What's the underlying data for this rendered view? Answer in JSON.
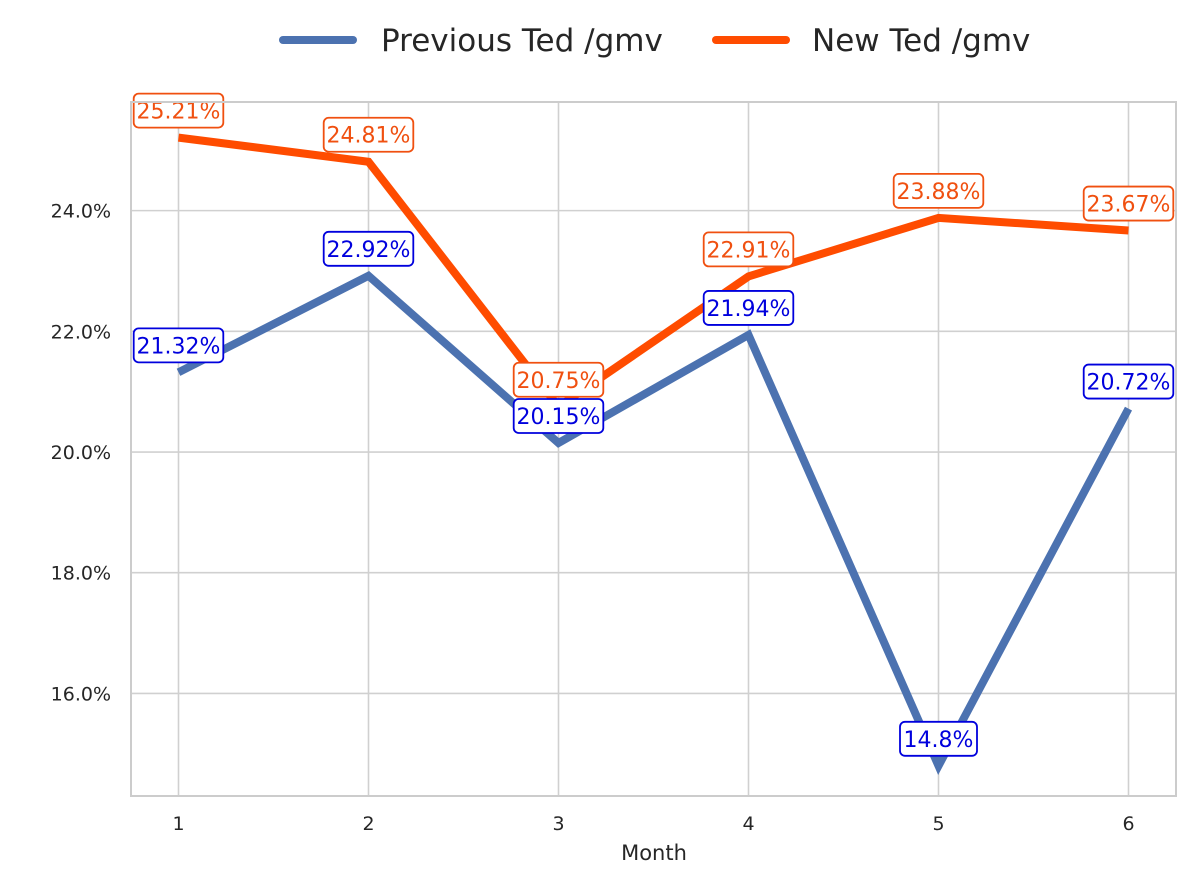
{
  "chart_data": {
    "type": "line",
    "xlabel": "Month",
    "ylabel": "",
    "x": [
      1,
      2,
      3,
      4,
      5,
      6
    ],
    "x_tick_labels": [
      "1",
      "2",
      "3",
      "4",
      "5",
      "6"
    ],
    "ylim": [
      14.3,
      25.8
    ],
    "y_ticks": [
      16,
      18,
      20,
      22,
      24
    ],
    "y_tick_labels": [
      "16.0%",
      "18.0%",
      "20.0%",
      "22.0%",
      "24.0%"
    ],
    "grid": true,
    "legend_position": "top-center",
    "series": [
      {
        "name": "Previous Ted /gmv",
        "color": "#4c72b0",
        "label_color": "#0000dd",
        "values": [
          21.32,
          22.92,
          20.15,
          21.94,
          14.8,
          20.72
        ],
        "labels": [
          "21.32%",
          "22.92%",
          "20.15%",
          "21.94%",
          "14.8%",
          "20.72%"
        ]
      },
      {
        "name": "New Ted /gmv",
        "color": "#ff4c00",
        "label_color": "#f05010",
        "values": [
          25.21,
          24.81,
          20.75,
          22.91,
          23.88,
          23.67
        ],
        "labels": [
          "25.21%",
          "24.81%",
          "20.75%",
          "22.91%",
          "23.88%",
          "23.67%"
        ]
      }
    ]
  }
}
